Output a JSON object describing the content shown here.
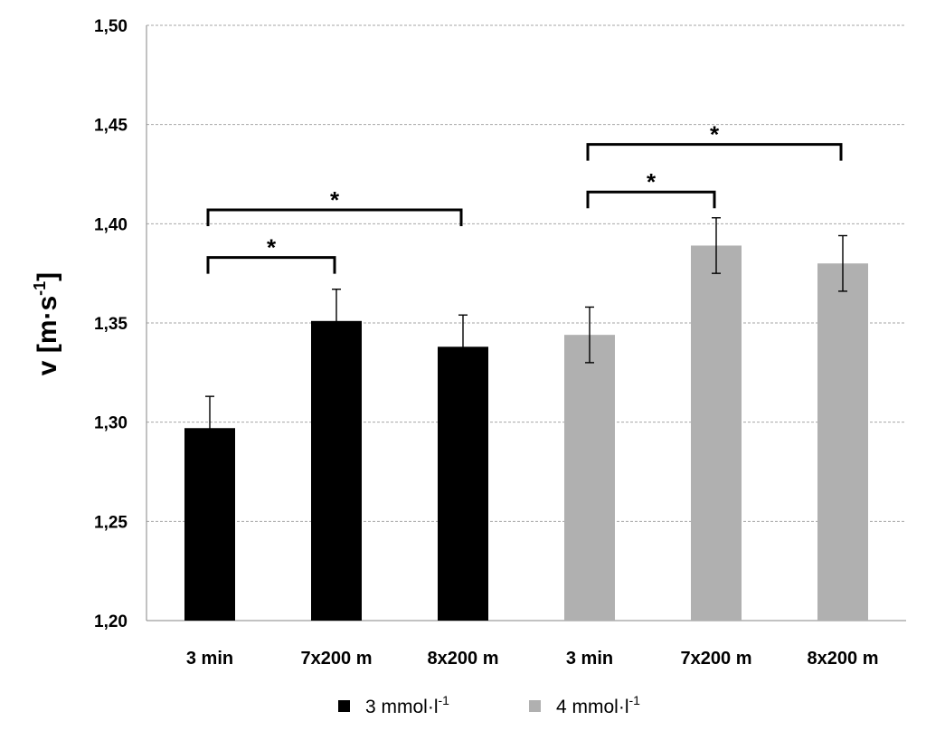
{
  "chart_data": {
    "type": "bar",
    "ylabel_main": "v [m·s",
    "ylabel_sup": "-1",
    "ylabel_end": "]",
    "ylim": [
      1.2,
      1.5
    ],
    "yticks": [
      1.2,
      1.25,
      1.3,
      1.35,
      1.4,
      1.45,
      1.5
    ],
    "ytick_labels": [
      "1,20",
      "1,25",
      "1,30",
      "1,35",
      "1,40",
      "1,45",
      "1,50"
    ],
    "grid": true,
    "legend_position": "bottom",
    "categories": [
      "3 min",
      "7x200 m",
      "8x200 m",
      "3 min",
      "7x200 m",
      "8x200 m"
    ],
    "series": [
      {
        "name": "3 mmol·l",
        "name_sup": "-1",
        "color": "#000000",
        "points": [
          {
            "value": 1.297,
            "error": 0.016
          },
          {
            "value": 1.351,
            "error": 0.016
          },
          {
            "value": 1.338,
            "error": 0.016
          }
        ]
      },
      {
        "name": "4 mmol·l",
        "name_sup": "-1",
        "color": "#b0b0b0",
        "points": [
          {
            "value": 1.344,
            "error": 0.014
          },
          {
            "value": 1.389,
            "error": 0.014
          },
          {
            "value": 1.38,
            "error": 0.014
          }
        ]
      }
    ],
    "significance": [
      {
        "from": 0,
        "to": 1,
        "y": 1.383,
        "label": "*"
      },
      {
        "from": 0,
        "to": 2,
        "y": 1.407,
        "label": "*"
      },
      {
        "from": 3,
        "to": 4,
        "y": 1.416,
        "label": "*"
      },
      {
        "from": 3,
        "to": 5,
        "y": 1.44,
        "label": "*"
      }
    ]
  }
}
